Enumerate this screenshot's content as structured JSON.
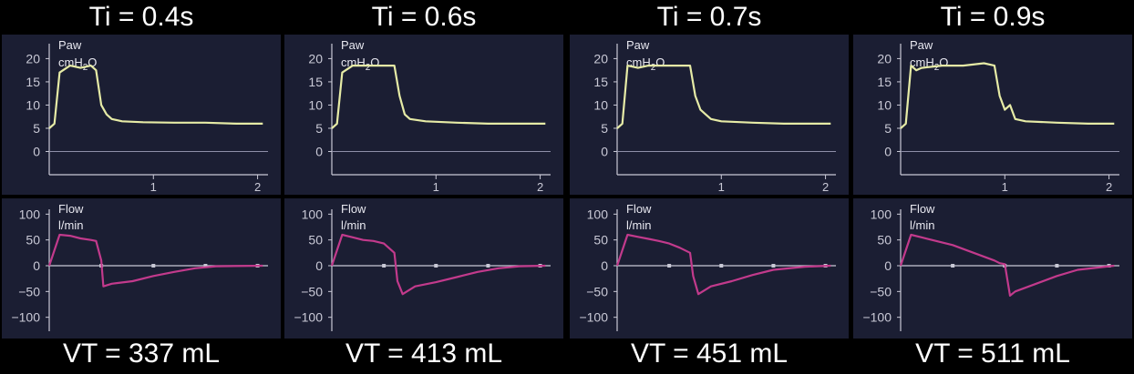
{
  "colors": {
    "pressure": "#e6eba6",
    "flow": "#c23a8c",
    "plot_bg": "#1b1e33",
    "axis": "#c9c9d6",
    "text": "#ffffff"
  },
  "chart_data": [
    {
      "type": "line",
      "title": "Ti = 0.4s",
      "footer": "VT = 337 mL",
      "x_ticks": [
        "1",
        "2"
      ],
      "xlim": [
        0,
        2.1
      ],
      "pressure": {
        "label": "Paw",
        "unit": "cmH",
        "unit_sub": "2",
        "unit_tail": "O",
        "ylim": [
          -5,
          24
        ],
        "yticks": [
          "0",
          "5",
          "10",
          "15",
          "20"
        ],
        "x": [
          0,
          0.05,
          0.1,
          0.2,
          0.3,
          0.4,
          0.45,
          0.5,
          0.55,
          0.6,
          0.7,
          0.9,
          1.2,
          1.5,
          1.8,
          2.05
        ],
        "y": [
          5,
          6,
          17,
          18.5,
          18,
          18.5,
          17.5,
          10,
          8,
          7,
          6.5,
          6.3,
          6.2,
          6.2,
          6.0,
          6.0
        ]
      },
      "flow": {
        "label": "Flow",
        "unit": "l/min",
        "ylim": [
          -120,
          120
        ],
        "yticks": [
          "100",
          "50",
          "0",
          "−50",
          "−100"
        ],
        "x": [
          0,
          0.1,
          0.2,
          0.3,
          0.4,
          0.45,
          0.5,
          0.52,
          0.6,
          0.8,
          1.0,
          1.2,
          1.4,
          1.6,
          2.05
        ],
        "y": [
          0,
          60,
          58,
          53,
          50,
          48,
          10,
          -40,
          -35,
          -30,
          -20,
          -12,
          -5,
          -1,
          0
        ]
      }
    },
    {
      "type": "line",
      "title": "Ti = 0.6s",
      "footer": "VT = 413 mL",
      "x_ticks": [
        "1",
        "2"
      ],
      "xlim": [
        0,
        2.1
      ],
      "pressure": {
        "label": "Paw",
        "unit": "cmH",
        "unit_sub": "2",
        "unit_tail": "O",
        "ylim": [
          -5,
          24
        ],
        "yticks": [
          "0",
          "5",
          "10",
          "15",
          "20"
        ],
        "x": [
          0,
          0.05,
          0.1,
          0.2,
          0.4,
          0.6,
          0.65,
          0.7,
          0.75,
          0.9,
          1.2,
          1.5,
          1.8,
          2.05
        ],
        "y": [
          5,
          6,
          17,
          18.5,
          18.5,
          18.5,
          12,
          8,
          7,
          6.5,
          6.2,
          6.0,
          6.0,
          6.0
        ]
      },
      "flow": {
        "label": "Flow",
        "unit": "l/min",
        "ylim": [
          -120,
          120
        ],
        "yticks": [
          "100",
          "50",
          "0",
          "−50",
          "−100"
        ],
        "x": [
          0,
          0.1,
          0.2,
          0.3,
          0.4,
          0.5,
          0.6,
          0.63,
          0.68,
          0.8,
          1.0,
          1.2,
          1.4,
          1.6,
          1.8,
          2.05
        ],
        "y": [
          0,
          60,
          55,
          50,
          48,
          43,
          25,
          -30,
          -55,
          -40,
          -32,
          -22,
          -12,
          -5,
          -1,
          0
        ]
      }
    },
    {
      "type": "line",
      "title": "Ti = 0.7s",
      "footer": "VT = 451 mL",
      "x_ticks": [
        "1",
        "2"
      ],
      "xlim": [
        0,
        2.1
      ],
      "pressure": {
        "label": "Paw",
        "unit": "cmH",
        "unit_sub": "2",
        "unit_tail": "O",
        "ylim": [
          -5,
          24
        ],
        "yticks": [
          "0",
          "5",
          "10",
          "15",
          "20"
        ],
        "x": [
          0,
          0.05,
          0.1,
          0.2,
          0.3,
          0.5,
          0.7,
          0.75,
          0.8,
          0.85,
          0.9,
          1.0,
          1.3,
          1.6,
          2.05
        ],
        "y": [
          5,
          6,
          18.5,
          18,
          18.5,
          18.5,
          18.5,
          12,
          9,
          8,
          7,
          6.5,
          6.2,
          6.0,
          6.0
        ]
      },
      "flow": {
        "label": "Flow",
        "unit": "l/min",
        "ylim": [
          -120,
          120
        ],
        "yticks": [
          "100",
          "50",
          "0",
          "−50",
          "−100"
        ],
        "x": [
          0,
          0.1,
          0.2,
          0.3,
          0.4,
          0.5,
          0.6,
          0.7,
          0.73,
          0.78,
          0.9,
          1.1,
          1.3,
          1.5,
          1.8,
          2.05
        ],
        "y": [
          0,
          60,
          56,
          52,
          48,
          43,
          35,
          25,
          -20,
          -55,
          -40,
          -30,
          -18,
          -8,
          -2,
          0
        ]
      }
    },
    {
      "type": "line",
      "title": "Ti = 0.9s",
      "footer": "VT = 511 mL",
      "x_ticks": [
        "1",
        "2"
      ],
      "xlim": [
        0,
        2.1
      ],
      "pressure": {
        "label": "Paw",
        "unit": "cmH",
        "unit_sub": "2",
        "unit_tail": "O",
        "ylim": [
          -5,
          24
        ],
        "yticks": [
          "0",
          "5",
          "10",
          "15",
          "20"
        ],
        "x": [
          0,
          0.05,
          0.1,
          0.15,
          0.2,
          0.4,
          0.6,
          0.8,
          0.9,
          0.95,
          1.0,
          1.05,
          1.1,
          1.2,
          1.5,
          1.8,
          2.05
        ],
        "y": [
          5,
          6,
          18.5,
          17.5,
          18,
          18.5,
          18.5,
          19,
          18.5,
          12,
          9,
          10,
          7,
          6.5,
          6.2,
          6.0,
          6.0
        ]
      },
      "flow": {
        "label": "Flow",
        "unit": "l/min",
        "ylim": [
          -120,
          120
        ],
        "yticks": [
          "100",
          "50",
          "0",
          "−50",
          "−100"
        ],
        "x": [
          0,
          0.1,
          0.2,
          0.3,
          0.5,
          0.7,
          0.9,
          0.95,
          1.0,
          1.05,
          1.1,
          1.3,
          1.5,
          1.7,
          2.05
        ],
        "y": [
          0,
          60,
          55,
          50,
          40,
          25,
          10,
          5,
          3,
          -58,
          -50,
          -35,
          -20,
          -8,
          0
        ]
      }
    }
  ]
}
